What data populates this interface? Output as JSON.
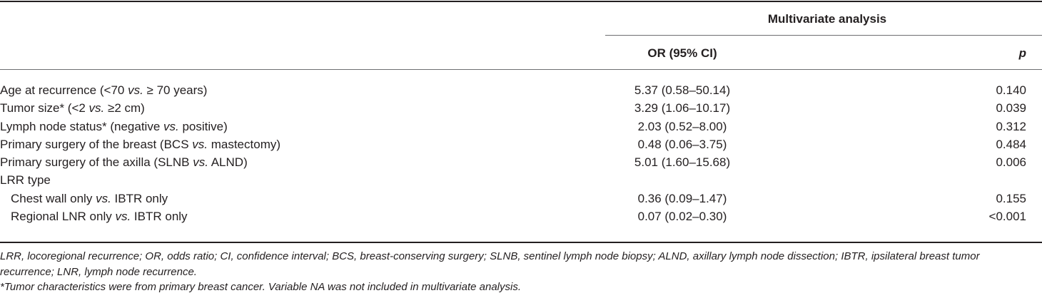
{
  "header": {
    "group_label": "Multivariate analysis",
    "col_or": "OR (95% CI)",
    "col_p": "p"
  },
  "rows": [
    {
      "pre": "Age at recurrence (<70 ",
      "vs": "vs.",
      "post": " ≥ 70 years)",
      "or": "5.37 (0.58–50.14)",
      "p": "0.140"
    },
    {
      "pre": "Tumor size* (<2 ",
      "vs": "vs.",
      "post": " ≥2 cm)",
      "or": "3.29 (1.06–10.17)",
      "p": "0.039"
    },
    {
      "pre": "Lymph node status* (negative ",
      "vs": "vs.",
      "post": " positive)",
      "or": "2.03 (0.52–8.00)",
      "p": "0.312"
    },
    {
      "pre": "Primary surgery of the breast (BCS ",
      "vs": "vs.",
      "post": " mastectomy)",
      "or": "0.48 (0.06–3.75)",
      "p": "0.484"
    },
    {
      "pre": "Primary surgery of the axilla (SLNB ",
      "vs": "vs.",
      "post": " ALND)",
      "or": "5.01 (1.60–15.68)",
      "p": "0.006"
    },
    {
      "pre": "LRR type",
      "vs": "",
      "post": "",
      "or": "",
      "p": ""
    },
    {
      "pre": "Chest wall only ",
      "vs": "vs.",
      "post": " IBTR only",
      "or": "0.36 (0.09–1.47)",
      "p": "0.155"
    },
    {
      "pre": "Regional LNR only ",
      "vs": "vs.",
      "post": " IBTR only",
      "or": "0.07 (0.02–0.30)",
      "p": "<0.001"
    }
  ],
  "footnotes": {
    "abbreviations": "LRR, locoregional recurrence; OR, odds ratio; CI, confidence interval; BCS, breast-conserving surgery; SLNB, sentinel lymph node biopsy; ALND, axillary lymph node dissection; IBTR, ipsilateral breast tumor recurrence; LNR, lymph node recurrence.",
    "note": "*Tumor characteristics were from primary breast cancer. Variable NA was not included in multivariate analysis."
  }
}
